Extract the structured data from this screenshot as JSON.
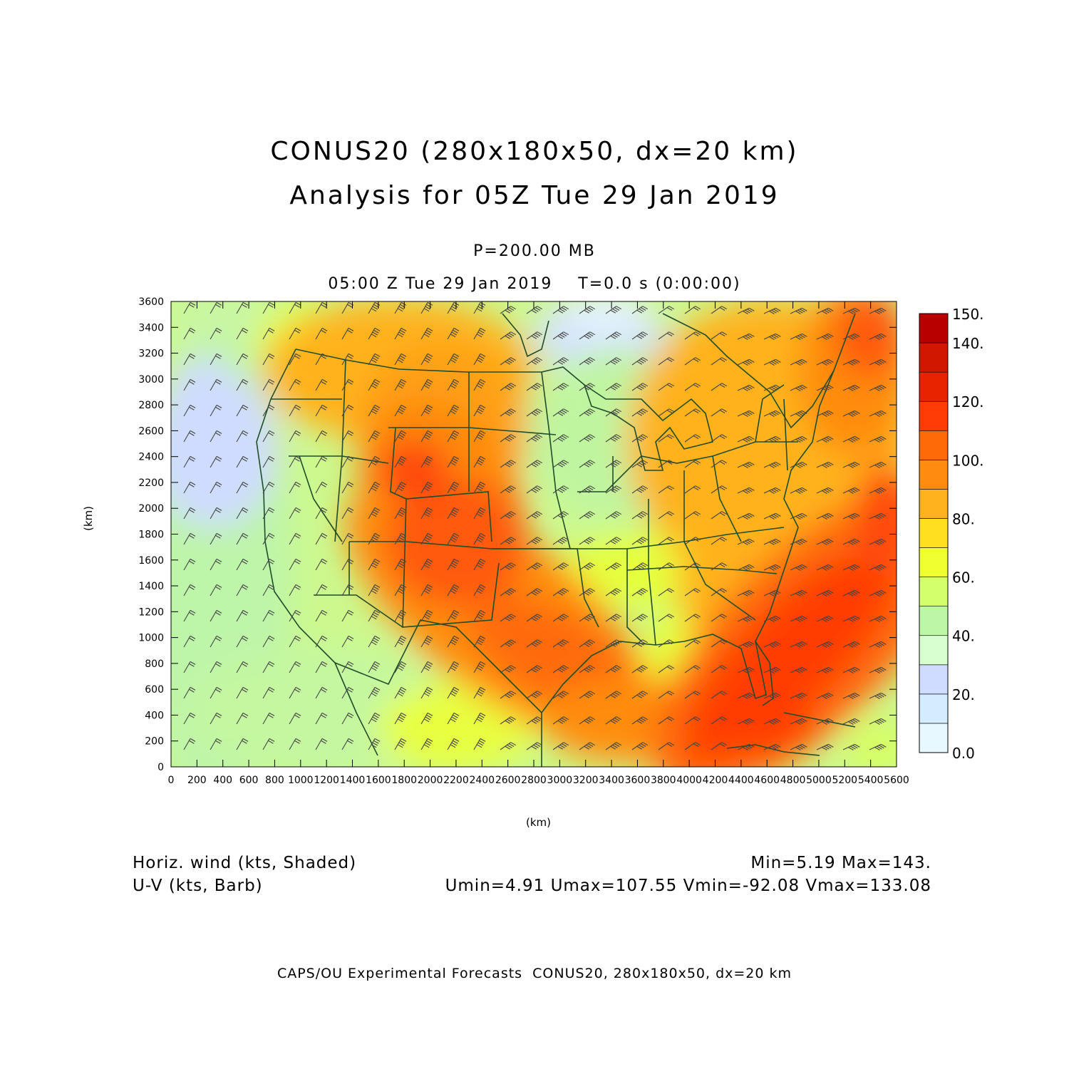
{
  "title": {
    "line1": "CONUS20 (280x180x50, dx=20 km)",
    "line2": "Analysis for 05Z Tue 29 Jan 2019"
  },
  "level": "P=200.00 MB",
  "valid_time": "05:00 Z Tue 29 Jan 2019    T=0.0 s (0:00:00)",
  "axes": {
    "xlabel": "(km)",
    "ylabel": "(km)",
    "xlim": [
      0,
      5600
    ],
    "ylim": [
      0,
      3600
    ],
    "xticks": [
      "0",
      "200",
      "400",
      "600",
      "800",
      "1000",
      "1200",
      "1400",
      "1600",
      "1800",
      "2000",
      "2200",
      "2400",
      "2600",
      "2800",
      "3000",
      "3200",
      "3400",
      "3600",
      "3800",
      "4000",
      "4200",
      "4400",
      "4600",
      "4800",
      "5000",
      "5200",
      "5400",
      "5600"
    ],
    "yticks": [
      "0",
      "200",
      "400",
      "600",
      "800",
      "1000",
      "1200",
      "1400",
      "1600",
      "1800",
      "2000",
      "2200",
      "2400",
      "2600",
      "2800",
      "3000",
      "3200",
      "3400",
      "3600"
    ]
  },
  "colorbar": {
    "levels": [
      0,
      10,
      20,
      30,
      40,
      50,
      60,
      70,
      80,
      90,
      100,
      110,
      120,
      130,
      140,
      150
    ],
    "labels": [
      "0.0",
      "20.",
      "40.",
      "60.",
      "80.",
      "100.",
      "120.",
      "140.",
      "150."
    ],
    "colors": [
      "#e8f8ff",
      "#d4ecff",
      "#cfdcff",
      "#d8ffd0",
      "#bcf7a8",
      "#d4ff6c",
      "#f0ff30",
      "#ffe020",
      "#ffb21e",
      "#ff8c10",
      "#ff6a08",
      "#ff3c06",
      "#e82400",
      "#d01800",
      "#b80000"
    ]
  },
  "field_legend": {
    "shaded": "Horiz. wind (kts, Shaded)",
    "barb": "U-V (kts, Barb)",
    "minmax": "Min=5.19 Max=143.",
    "uv_stats": "Umin=4.91 Umax=107.55 Vmin=-92.08 Vmax=133.08"
  },
  "credit": "CAPS/OU Experimental Forecasts  CONUS20, 280x180x50, dx=20 km",
  "colors": {
    "map_lines": "#1f4d2a",
    "barbs": "#444444"
  }
}
